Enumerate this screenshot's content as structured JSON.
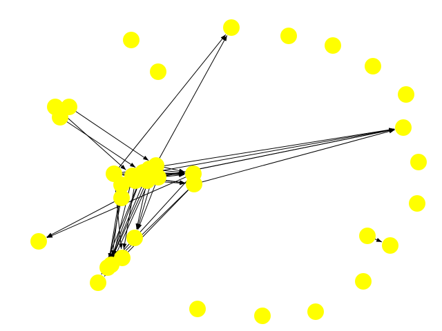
{
  "graph": {
    "directed": true,
    "node_color": "#ffff00",
    "edge_color": "#000000",
    "node_count": 37,
    "edge_count": 40
  }
}
